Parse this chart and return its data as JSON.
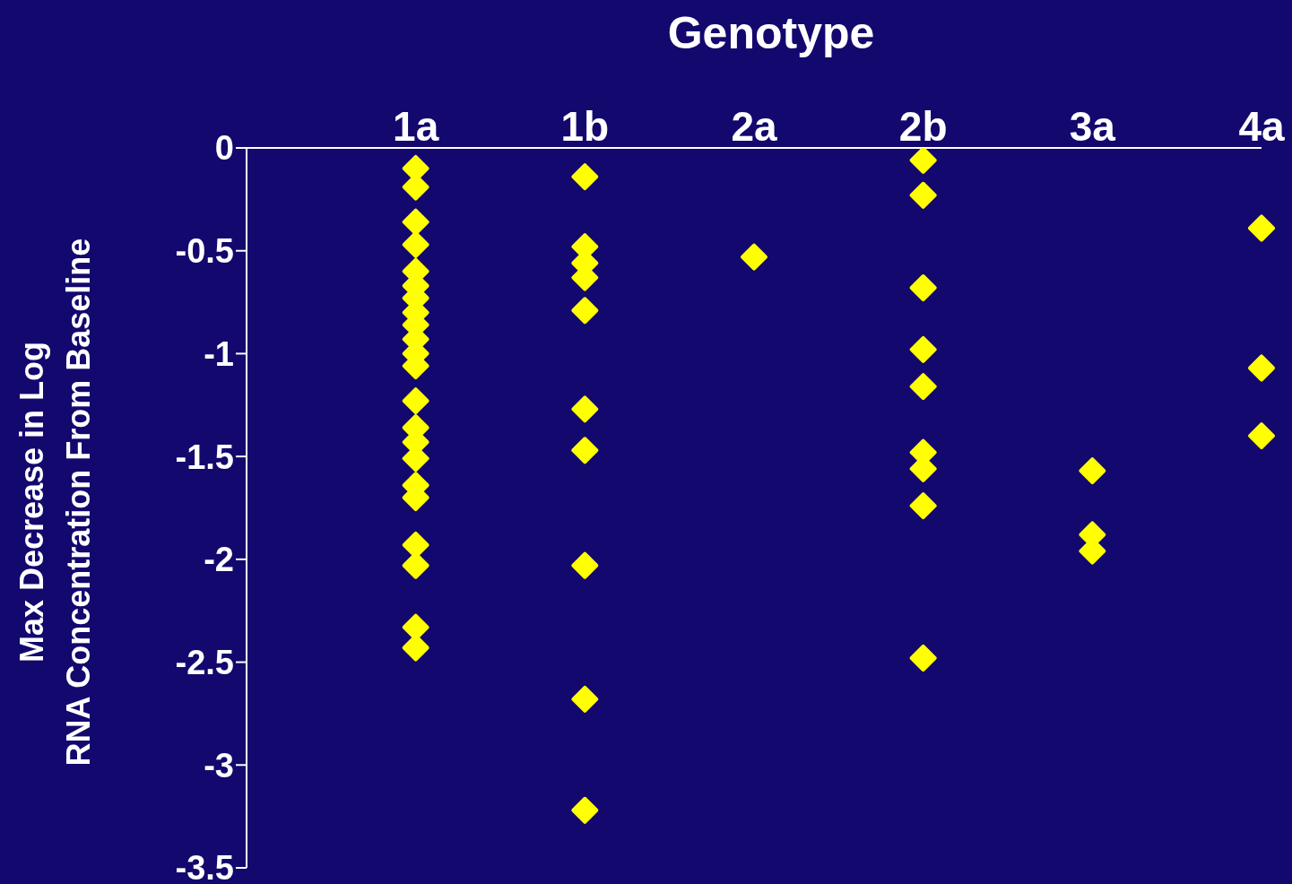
{
  "chart_data": {
    "type": "scatter",
    "title": "Genotype",
    "ylabel": "Max Decrease in Log\nRNA Concentration From Baseline",
    "categories": [
      "1a",
      "1b",
      "2a",
      "2b",
      "3a",
      "4a"
    ],
    "marker": "diamond",
    "ylim": [
      -3.5,
      0
    ],
    "yticks": [
      0,
      -0.5,
      -1,
      -1.5,
      -2,
      -2.5,
      -3,
      -3.5
    ],
    "series": [
      {
        "color": "#ffff00",
        "x": [
          "1a",
          "1a",
          "1a",
          "1a",
          "1a",
          "1a",
          "1a",
          "1a",
          "1a",
          "1a",
          "1a",
          "1a",
          "1a",
          "1a",
          "1a",
          "1a",
          "1a",
          "1a",
          "1a",
          "1a",
          "1a",
          "1a",
          "1b",
          "1b",
          "1b",
          "1b",
          "1b",
          "1b",
          "1b",
          "1b",
          "1b",
          "1b",
          "2a",
          "2b",
          "2b",
          "2b",
          "2b",
          "2b",
          "2b",
          "2b",
          "2b",
          "2b",
          "3a",
          "3a",
          "3a",
          "4a",
          "4a",
          "4a"
        ],
        "values": [
          -0.1,
          -0.19,
          -0.36,
          -0.47,
          -0.6,
          -0.67,
          -0.73,
          -0.8,
          -0.86,
          -0.93,
          -1.0,
          -1.06,
          -1.23,
          -1.36,
          -1.43,
          -1.51,
          -1.64,
          -1.7,
          -1.93,
          -2.03,
          -2.33,
          -2.43,
          -0.14,
          -0.48,
          -0.56,
          -0.63,
          -0.79,
          -1.27,
          -1.47,
          -2.03,
          -2.68,
          -3.22,
          -0.53,
          -0.06,
          -0.23,
          -0.68,
          -0.98,
          -1.16,
          -1.48,
          -1.56,
          -1.74,
          -2.48,
          -1.57,
          -1.88,
          -1.96,
          -0.39,
          -1.07,
          -1.4
        ]
      }
    ]
  }
}
